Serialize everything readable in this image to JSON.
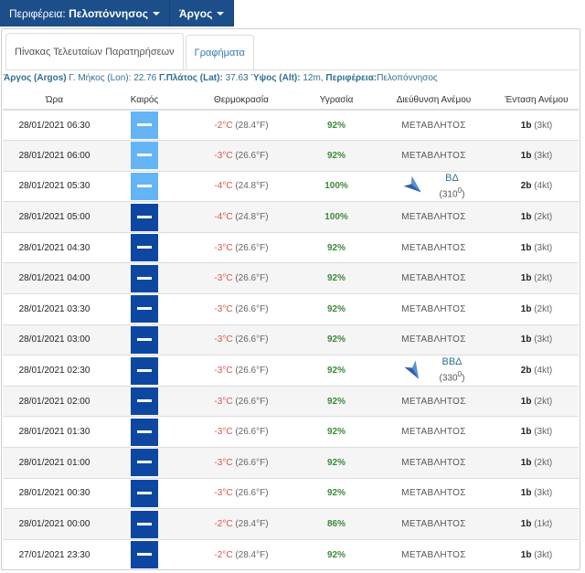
{
  "nav": {
    "region_label": "Περιφέρεια:",
    "region_value": "Πελοπόννησος",
    "station_value": "Άργος"
  },
  "tabs": {
    "observations": "Πίνακας Τελευταίων Παρατηρήσεων",
    "charts": "Γραφήματα"
  },
  "station": {
    "name": "Άργος (Argos)",
    "lon_label": "Γ. Μήκος (Lon):",
    "lon_value": "22.76",
    "lat_label": "Γ.Πλάτος (Lat):",
    "lat_value": "37.63",
    "alt_label": "Ύψος (Alt):",
    "alt_value": "12m,",
    "region_label": "Περιφέρεια:",
    "region_value": "Πελοπόννησος"
  },
  "columns": {
    "time": "Ώρα",
    "weather": "Καιρός",
    "temperature": "Θερμοκρασία",
    "humidity": "Υγρασία",
    "wind_dir": "Διεύθυνση Ανέμου",
    "wind_int": "Ένταση Ανέμου"
  },
  "colors": {
    "nav_bg": "#1c4e8a",
    "weather_dark": "#0d47a1",
    "weather_light": "#64b5f6",
    "temp": "#d9534f",
    "humidity": "#3c8a3c"
  },
  "rows": [
    {
      "time": "28/01/2021 06:30",
      "weather_icon": "light-fog-icon",
      "temp_c": "-2°C",
      "temp_f": "(28.4°F)",
      "humidity": "92%",
      "wind_var": "ΜΕΤΑΒΛΗΤΟΣ",
      "wind_b": "1b",
      "wind_kt": "(3kt)"
    },
    {
      "time": "28/01/2021 06:00",
      "weather_icon": "light-fog-icon",
      "temp_c": "-3°C",
      "temp_f": "(26.6°F)",
      "humidity": "92%",
      "wind_var": "ΜΕΤΑΒΛΗΤΟΣ",
      "wind_b": "1b",
      "wind_kt": "(3kt)"
    },
    {
      "time": "28/01/2021 05:30",
      "weather_icon": "light-fog-icon",
      "temp_c": "-4°C",
      "temp_f": "(24.8°F)",
      "humidity": "100%",
      "wind_dir": "ΒΔ",
      "wind_deg": "(310",
      "wind_b": "2b",
      "wind_kt": "(4kt)"
    },
    {
      "time": "28/01/2021 05:00",
      "weather_icon": "night-fog-icon",
      "temp_c": "-4°C",
      "temp_f": "(24.8°F)",
      "humidity": "100%",
      "wind_var": "ΜΕΤΑΒΛΗΤΟΣ",
      "wind_b": "1b",
      "wind_kt": "(2kt)"
    },
    {
      "time": "28/01/2021 04:30",
      "weather_icon": "night-fog-icon",
      "temp_c": "-3°C",
      "temp_f": "(26.6°F)",
      "humidity": "92%",
      "wind_var": "ΜΕΤΑΒΛΗΤΟΣ",
      "wind_b": "1b",
      "wind_kt": "(3kt)"
    },
    {
      "time": "28/01/2021 04:00",
      "weather_icon": "night-fog-icon",
      "temp_c": "-3°C",
      "temp_f": "(26.6°F)",
      "humidity": "92%",
      "wind_var": "ΜΕΤΑΒΛΗΤΟΣ",
      "wind_b": "1b",
      "wind_kt": "(2kt)"
    },
    {
      "time": "28/01/2021 03:30",
      "weather_icon": "night-fog-icon",
      "temp_c": "-3°C",
      "temp_f": "(26.6°F)",
      "humidity": "92%",
      "wind_var": "ΜΕΤΑΒΛΗΤΟΣ",
      "wind_b": "1b",
      "wind_kt": "(2kt)"
    },
    {
      "time": "28/01/2021 03:00",
      "weather_icon": "night-fog-icon",
      "temp_c": "-3°C",
      "temp_f": "(26.6°F)",
      "humidity": "92%",
      "wind_var": "ΜΕΤΑΒΛΗΤΟΣ",
      "wind_b": "1b",
      "wind_kt": "(3kt)"
    },
    {
      "time": "28/01/2021 02:30",
      "weather_icon": "night-fog-icon",
      "temp_c": "-3°C",
      "temp_f": "(26.6°F)",
      "humidity": "92%",
      "wind_dir": "ΒΒΔ",
      "wind_deg": "(330",
      "wind_b": "2b",
      "wind_kt": "(4kt)"
    },
    {
      "time": "28/01/2021 02:00",
      "weather_icon": "night-fog-icon",
      "temp_c": "-3°C",
      "temp_f": "(26.6°F)",
      "humidity": "92%",
      "wind_var": "ΜΕΤΑΒΛΗΤΟΣ",
      "wind_b": "1b",
      "wind_kt": "(2kt)"
    },
    {
      "time": "28/01/2021 01:30",
      "weather_icon": "night-fog-icon",
      "temp_c": "-3°C",
      "temp_f": "(26.6°F)",
      "humidity": "92%",
      "wind_var": "ΜΕΤΑΒΛΗΤΟΣ",
      "wind_b": "1b",
      "wind_kt": "(3kt)"
    },
    {
      "time": "28/01/2021 01:00",
      "weather_icon": "night-fog-icon",
      "temp_c": "-3°C",
      "temp_f": "(26.6°F)",
      "humidity": "92%",
      "wind_var": "ΜΕΤΑΒΛΗΤΟΣ",
      "wind_b": "1b",
      "wind_kt": "(2kt)"
    },
    {
      "time": "28/01/2021 00:30",
      "weather_icon": "night-fog-icon",
      "temp_c": "-3°C",
      "temp_f": "(26.6°F)",
      "humidity": "92%",
      "wind_var": "ΜΕΤΑΒΛΗΤΟΣ",
      "wind_b": "1b",
      "wind_kt": "(3kt)"
    },
    {
      "time": "28/01/2021 00:00",
      "weather_icon": "night-fog-icon",
      "temp_c": "-2°C",
      "temp_f": "(28.4°F)",
      "humidity": "86%",
      "wind_var": "ΜΕΤΑΒΛΗΤΟΣ",
      "wind_b": "1b",
      "wind_kt": "(1kt)"
    },
    {
      "time": "27/01/2021 23:30",
      "weather_icon": "night-fog-icon",
      "temp_c": "-2°C",
      "temp_f": "(28.4°F)",
      "humidity": "92%",
      "wind_var": "ΜΕΤΑΒΛΗΤΟΣ",
      "wind_b": "1b",
      "wind_kt": "(3kt)"
    }
  ]
}
